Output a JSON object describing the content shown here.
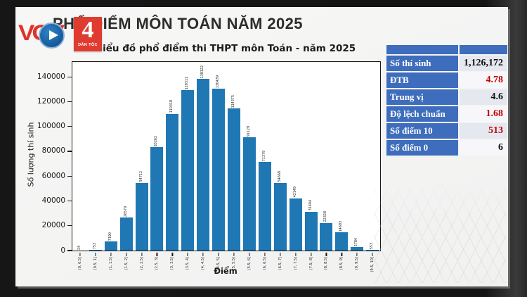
{
  "slide_title": "PHỔ ĐIỂM MÔN TOÁN NĂM 2025",
  "logo": {
    "text": "VOV",
    "number": "4",
    "subtext": "DÂN TỘC"
  },
  "chart_data": {
    "type": "bar",
    "title": "Biểu đồ phổ điểm thi THPT môn Toán - năm 2025",
    "xlabel": "Điểm",
    "ylabel": "Số lượng thí sinh",
    "categories": [
      "(0, 0.5]",
      "(0.5, 1]",
      "(1, 1.5]",
      "(1.5, 2]",
      "(2, 2.5]",
      "(2.5, 3]",
      "(3, 3.5]",
      "(3.5, 4]",
      "(4, 4.5]",
      "(4.5, 5]",
      "(5, 5.5]",
      "(5.5, 6]",
      "(6, 6.5]",
      "(6.5, 7]",
      "(7, 7.5]",
      "(7.5, 8]",
      "(8, 8.5]",
      "(8.5, 9]",
      "(9, 9.5]",
      "(9.5, 10]"
    ],
    "values": [
      24,
      753,
      7190,
      26579,
      54712,
      83262,
      110318,
      129311,
      138122,
      130439,
      114375,
      91129,
      71379,
      54668,
      42149,
      31404,
      22328,
      14693,
      2784,
      553
    ],
    "yticks": [
      0,
      20000,
      40000,
      60000,
      80000,
      100000,
      120000,
      140000
    ],
    "ylim": [
      0,
      152000
    ],
    "grid": false,
    "bar_color": "#1f77b4",
    "value_labels": true
  },
  "stats_table": {
    "rows": [
      {
        "label": "Số thí sinh",
        "value": "1,126,172",
        "color": "black"
      },
      {
        "label": "ĐTB",
        "value": "4.78",
        "color": "red"
      },
      {
        "label": "Trung vị",
        "value": "4.6",
        "color": "black"
      },
      {
        "label": "Độ lệch chuẩn",
        "value": "1.68",
        "color": "red"
      },
      {
        "label": "Số điểm 10",
        "value": "513",
        "color": "red"
      },
      {
        "label": "Số điểm 0",
        "value": "6",
        "color": "black"
      }
    ],
    "colors": {
      "label_bg": "#3e6dbd",
      "value_red": "#c00000",
      "value_black": "#111111"
    }
  }
}
